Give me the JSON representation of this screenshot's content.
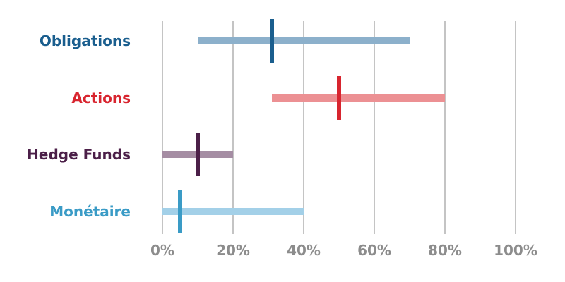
{
  "chart_data": {
    "type": "bar",
    "orientation": "horizontal-range",
    "title": "",
    "xlabel": "",
    "ylabel": "",
    "xlim": [
      0,
      100
    ],
    "x_ticks": [
      0,
      20,
      40,
      60,
      80,
      100
    ],
    "x_tick_labels": [
      "0%",
      "20%",
      "40%",
      "60%",
      "80%",
      "100%"
    ],
    "grid": "vertical",
    "categories": [
      "Obligations",
      "Actions",
      "Hedge Funds",
      "Monétaire"
    ],
    "ranges": [
      {
        "category": "Obligations",
        "min": 10,
        "max": 70,
        "marker": 31,
        "color": "#1a5e8e",
        "range_color": "#8cb0cb"
      },
      {
        "category": "Actions",
        "min": 31,
        "max": 80,
        "marker": 50,
        "color": "#d8252f",
        "range_color": "#ec9093"
      },
      {
        "category": "Hedge Funds",
        "min": 0,
        "max": 20,
        "marker": 10,
        "color": "#4b1f48",
        "range_color": "#a58da3"
      },
      {
        "category": "Monétaire",
        "min": 0,
        "max": 40,
        "marker": 5,
        "color": "#3a9bc6",
        "range_color": "#a3d0e8"
      }
    ]
  }
}
